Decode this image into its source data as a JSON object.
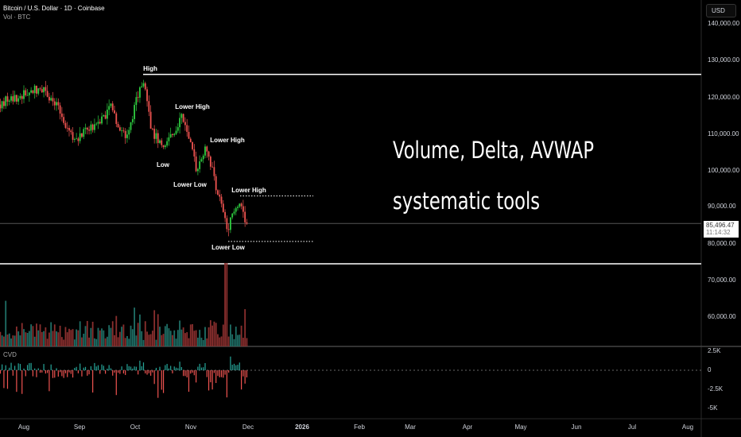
{
  "header": {
    "symbol": "Bitcoin / U.S. Dollar · 1D · Coinbase",
    "volume_label": "Vol · BTC",
    "currency_button": "USD"
  },
  "price_axis": {
    "ticks": [
      "140,000.00",
      "130,000.00",
      "120,000.00",
      "110,000.00",
      "100,000.00",
      "90,000.00",
      "80,000.00",
      "70,000.00",
      "60,000.00"
    ],
    "last_price": "85,496.47",
    "countdown": "11:14:32"
  },
  "cvd": {
    "label": "CVD",
    "ticks": [
      "2.5K",
      "0",
      "-2.5K",
      "-5K"
    ]
  },
  "time_axis": [
    "Aug",
    "Sep",
    "Oct",
    "Nov",
    "Dec",
    "2026",
    "Feb",
    "Mar",
    "Apr",
    "May",
    "Jun",
    "Jul",
    "Aug"
  ],
  "annotations": {
    "high": "High",
    "lower_high_1": "Lower High",
    "low": "Low",
    "lower_high_2": "Lower High",
    "lower_low_1": "Lower Low",
    "lower_high_3": "Lower High",
    "lower_low_2": "Lower Low"
  },
  "overlay_text": {
    "line1": "Volume, Delta, AVWAP",
    "line2": "systematic tools"
  },
  "colors": {
    "up": "#26a69a",
    "up_candle": "#2ecc40",
    "down": "#ef5350",
    "line": "#ffffff"
  },
  "chart_data": {
    "type": "candlestick",
    "price_anchors": [
      [
        "2025-07-18",
        118000
      ],
      [
        "2025-08-12",
        123000
      ],
      [
        "2025-08-30",
        108000
      ],
      [
        "2025-09-18",
        117000
      ],
      [
        "2025-09-26",
        109000
      ],
      [
        "2025-10-06",
        125000
      ],
      [
        "2025-10-10",
        112000
      ],
      [
        "2025-10-17",
        105000
      ],
      [
        "2025-10-27",
        115000
      ],
      [
        "2025-11-04",
        101000
      ],
      [
        "2025-11-10",
        106000
      ],
      [
        "2025-11-21",
        84000
      ],
      [
        "2025-11-28",
        92000
      ],
      [
        "2025-12-02",
        85496.47
      ]
    ],
    "levels": {
      "high": 126200,
      "lower_high": 93000,
      "lower_low": 80600,
      "support": 74500,
      "last": 85496.47
    },
    "ylim": [
      50000,
      145000
    ]
  }
}
